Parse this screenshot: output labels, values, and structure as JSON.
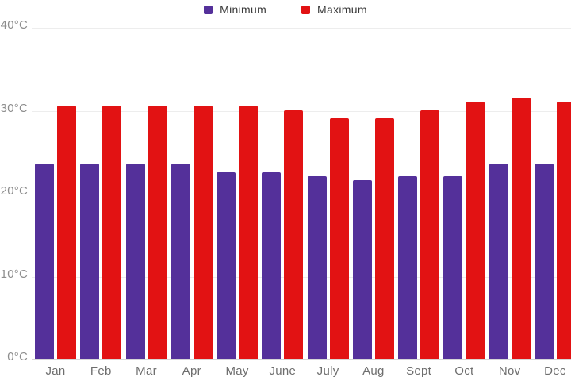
{
  "legend": {
    "minimum_label": "Minimum",
    "maximum_label": "Maximum"
  },
  "chart_data": {
    "type": "bar",
    "title": "",
    "categories": [
      "Jan",
      "Feb",
      "Mar",
      "Apr",
      "May",
      "June",
      "July",
      "Aug",
      "Sept",
      "Oct",
      "Nov",
      "Dec"
    ],
    "series": [
      {
        "name": "Minimum",
        "color": "#54309a",
        "values": [
          23.5,
          23.5,
          23.5,
          23.5,
          22.5,
          22.5,
          22,
          21.5,
          22,
          22,
          23.5,
          23.5
        ]
      },
      {
        "name": "Maximum",
        "color": "#e21213",
        "values": [
          30.5,
          30.5,
          30.5,
          30.5,
          30.5,
          30,
          29,
          29,
          30,
          31,
          31.5,
          31
        ]
      }
    ],
    "unit": "°C",
    "y_ticks": [
      "0°C",
      "10°C",
      "20°C",
      "30°C",
      "40°C"
    ],
    "ylim": [
      0,
      40
    ],
    "grid": true,
    "legend_position": "top-center",
    "gridline_color": "#ededed",
    "baseline_color": "#d6d6d6",
    "axis_label_color": "#8d8d8d"
  }
}
